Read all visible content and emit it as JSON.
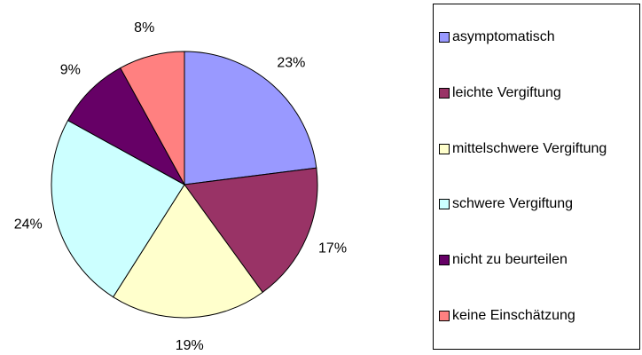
{
  "chart_data": {
    "type": "pie",
    "categories": [
      "asymptomatisch",
      "leichte Vergiftung",
      "mittelschwere Vergiftung",
      "schwere Vergiftung",
      "nicht zu beurteilen",
      "keine Einschätzung"
    ],
    "values": [
      23,
      17,
      19,
      24,
      9,
      8
    ],
    "value_labels": [
      "23%",
      "17%",
      "19%",
      "24%",
      "9%",
      "8%"
    ],
    "colors": [
      "#9999ff",
      "#993366",
      "#ffffcc",
      "#ccffff",
      "#660066",
      "#ff8080"
    ],
    "legend": "right"
  }
}
